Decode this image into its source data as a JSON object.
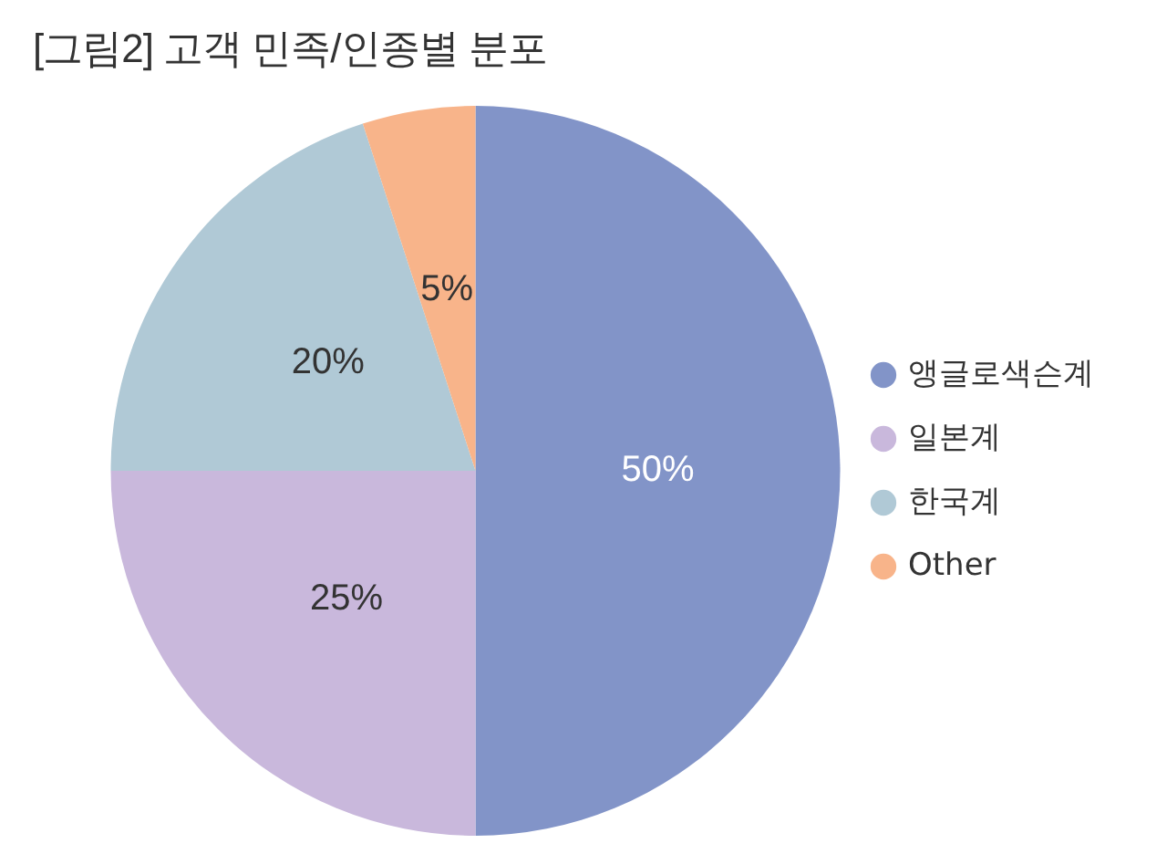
{
  "chart_data": {
    "type": "pie",
    "title": "[그림2] 고객 민족/인종별 분포",
    "categories": [
      "앵글로색슨계",
      "일본계",
      "한국계",
      "Other"
    ],
    "values": [
      50,
      25,
      20,
      5
    ],
    "colors": [
      "#8294c8",
      "#c9b8dc",
      "#b0c9d6",
      "#f8b48a"
    ],
    "value_labels": [
      "50%",
      "25%",
      "20%",
      "5%"
    ],
    "legend": "right"
  }
}
